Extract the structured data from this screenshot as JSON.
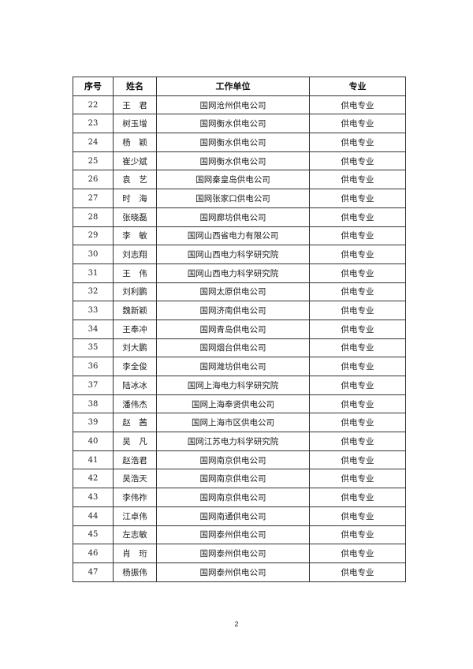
{
  "table": {
    "headers": [
      "序号",
      "姓名",
      "工作单位",
      "专业"
    ],
    "rows": [
      [
        "22",
        "王　君",
        "国网沧州供电公司",
        "供电专业"
      ],
      [
        "23",
        "树玉增",
        "国网衡水供电公司",
        "供电专业"
      ],
      [
        "24",
        "杨　颖",
        "国网衡水供电公司",
        "供电专业"
      ],
      [
        "25",
        "崔少斌",
        "国网衡水供电公司",
        "供电专业"
      ],
      [
        "26",
        "袁　艺",
        "国网秦皇岛供电公司",
        "供电专业"
      ],
      [
        "27",
        "时　海",
        "国网张家口供电公司",
        "供电专业"
      ],
      [
        "28",
        "张晓磊",
        "国网廊坊供电公司",
        "供电专业"
      ],
      [
        "29",
        "李　敏",
        "国网山西省电力有限公司",
        "供电专业"
      ],
      [
        "30",
        "刘志翔",
        "国网山西电力科学研究院",
        "供电专业"
      ],
      [
        "31",
        "王　伟",
        "国网山西电力科学研究院",
        "供电专业"
      ],
      [
        "32",
        "刘利鹏",
        "国网太原供电公司",
        "供电专业"
      ],
      [
        "33",
        "魏新颖",
        "国网济南供电公司",
        "供电专业"
      ],
      [
        "34",
        "王奉冲",
        "国网青岛供电公司",
        "供电专业"
      ],
      [
        "35",
        "刘大鹏",
        "国网烟台供电公司",
        "供电专业"
      ],
      [
        "36",
        "李全俊",
        "国网潍坊供电公司",
        "供电专业"
      ],
      [
        "37",
        "陆冰冰",
        "国网上海电力科学研究院",
        "供电专业"
      ],
      [
        "38",
        "潘伟杰",
        "国网上海奉贤供电公司",
        "供电专业"
      ],
      [
        "39",
        "赵　茜",
        "国网上海市区供电公司",
        "供电专业"
      ],
      [
        "40",
        "吴　凡",
        "国网江苏电力科学研究院",
        "供电专业"
      ],
      [
        "41",
        "赵浩君",
        "国网南京供电公司",
        "供电专业"
      ],
      [
        "42",
        "吴浩天",
        "国网南京供电公司",
        "供电专业"
      ],
      [
        "43",
        "李伟祚",
        "国网南京供电公司",
        "供电专业"
      ],
      [
        "44",
        "江卓伟",
        "国网南通供电公司",
        "供电专业"
      ],
      [
        "45",
        "左志敏",
        "国网泰州供电公司",
        "供电专业"
      ],
      [
        "46",
        "肖　珩",
        "国网泰州供电公司",
        "供电专业"
      ],
      [
        "47",
        "杨振伟",
        "国网泰州供电公司",
        "供电专业"
      ]
    ]
  },
  "page_number": "2"
}
